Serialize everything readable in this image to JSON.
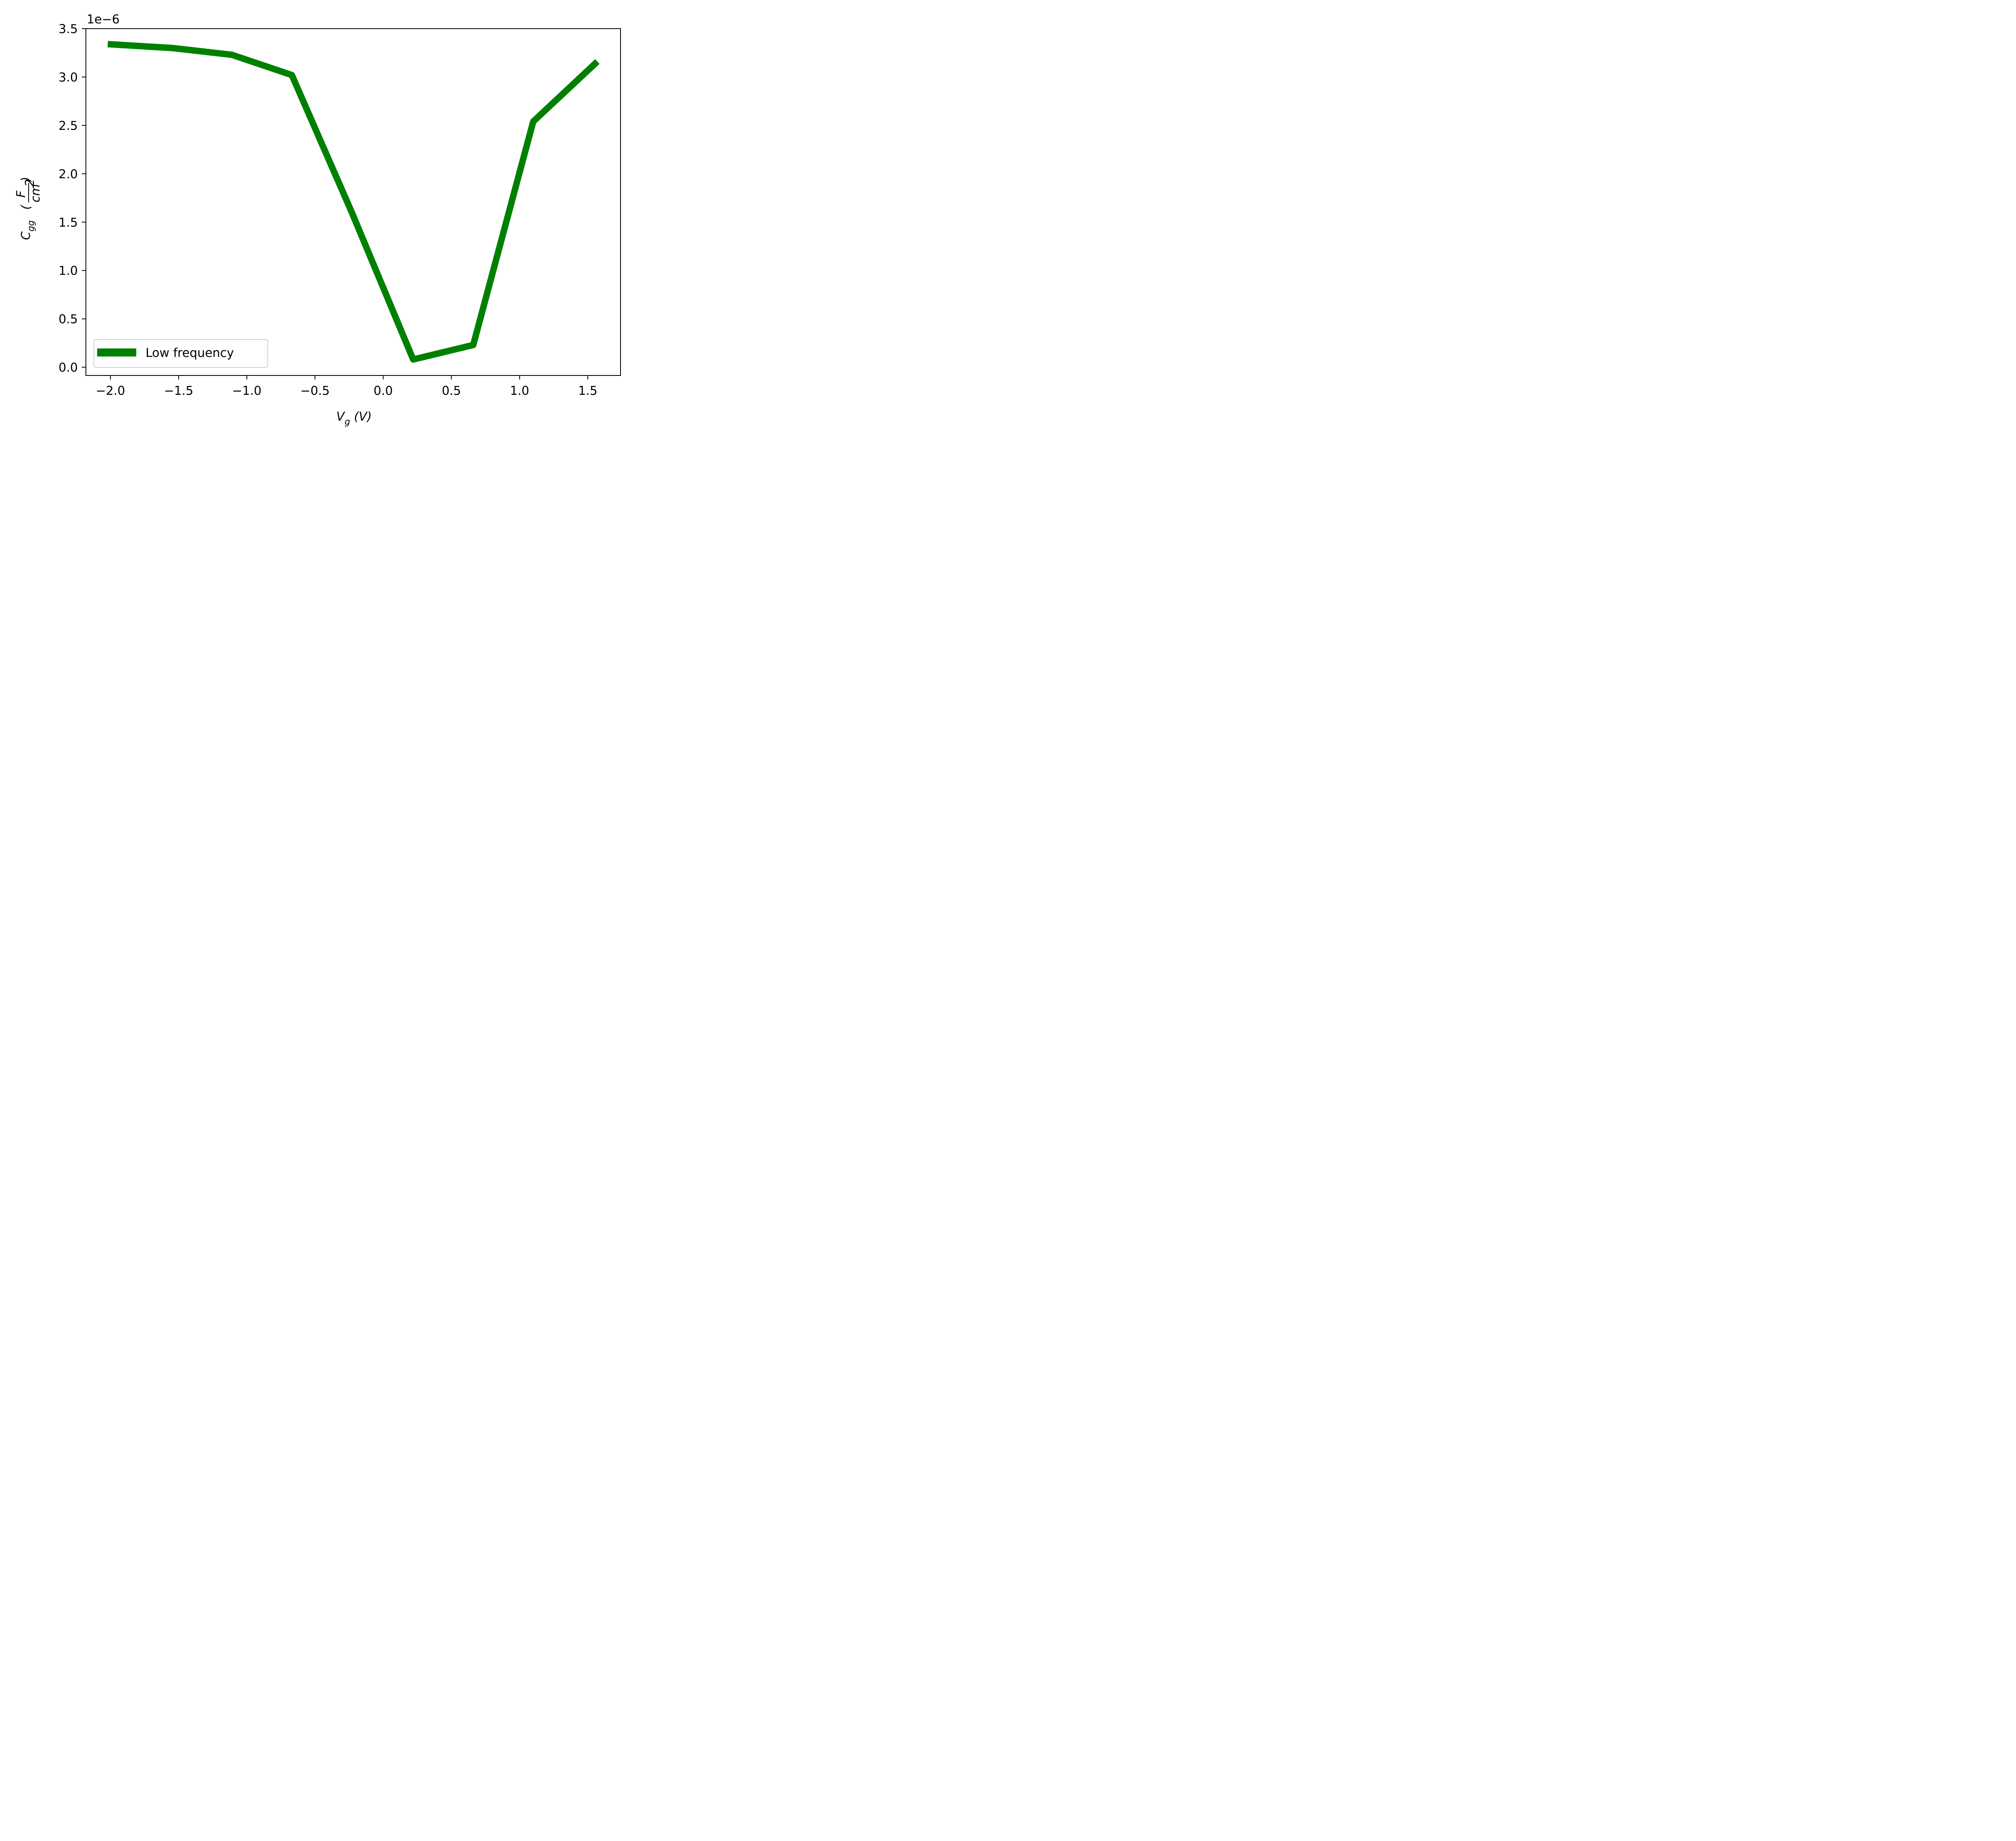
{
  "chart_data": {
    "type": "line",
    "xlabel": "V_g (V)",
    "ylabel": "C_gg (F/cm^2)",
    "offset_label": "1e−6",
    "xlim": [
      -2.18,
      1.74
    ],
    "ylim": [
      -0.085,
      3.5
    ],
    "xticks": [
      -2.0,
      -1.5,
      -1.0,
      -0.5,
      0.0,
      0.5,
      1.0,
      1.5
    ],
    "xtick_labels": [
      "−2.0",
      "−1.5",
      "−1.0",
      "−0.5",
      "0.0",
      "0.5",
      "1.0",
      "1.5"
    ],
    "yticks": [
      0.0,
      0.5,
      1.0,
      1.5,
      2.0,
      2.5,
      3.0,
      3.5
    ],
    "ytick_labels": [
      "0.0",
      "0.5",
      "1.0",
      "1.5",
      "2.0",
      "2.5",
      "3.0",
      "3.5"
    ],
    "legend_position": "lower-left",
    "grid": false,
    "series": [
      {
        "name": "Low frequency",
        "color": "#008000",
        "x": [
          -2.02,
          -1.55,
          -1.11,
          -0.67,
          -0.23,
          0.22,
          0.66,
          1.1,
          1.57
        ],
        "y": [
          3.34,
          3.3,
          3.23,
          3.02,
          1.6,
          0.08,
          0.23,
          2.54,
          3.16
        ]
      }
    ]
  }
}
